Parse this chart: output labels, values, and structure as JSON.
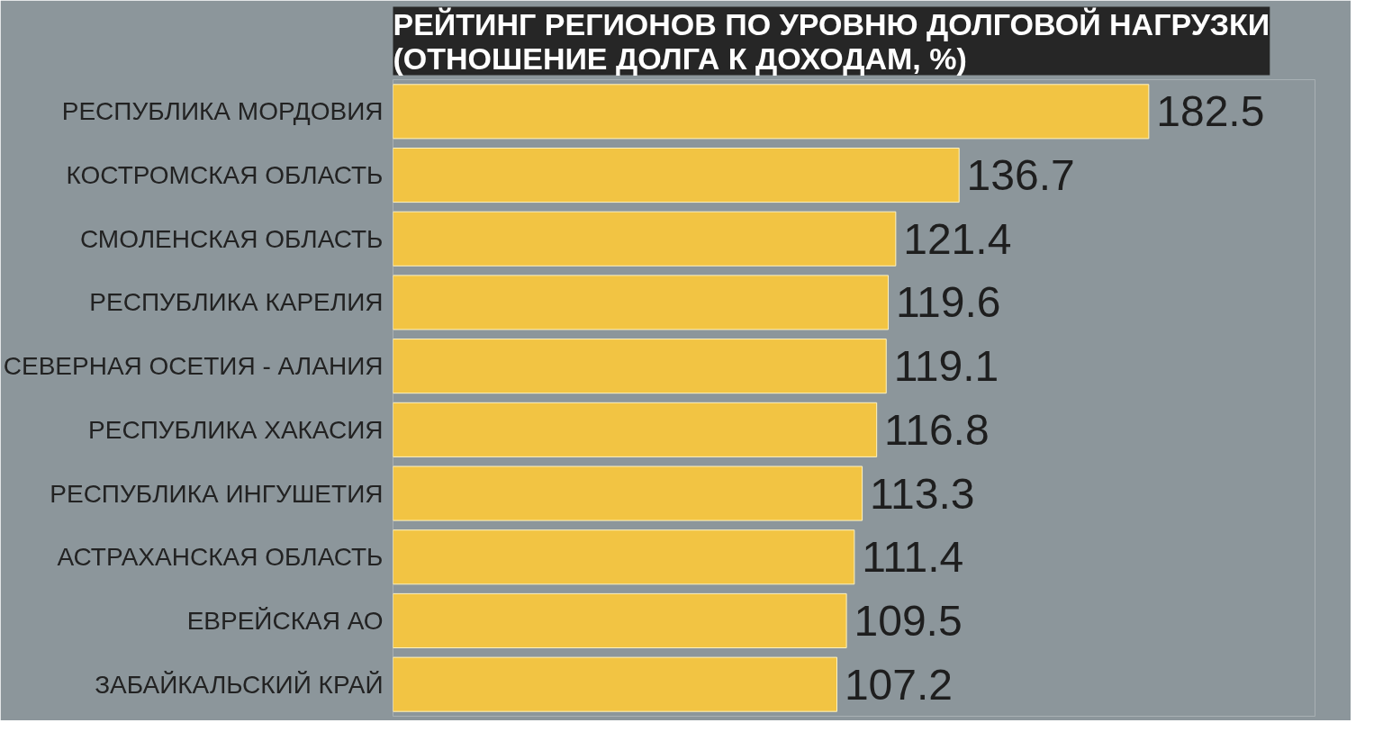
{
  "chart_data": {
    "type": "bar",
    "orientation": "horizontal",
    "title": "РЕЙТИНГ РЕГИОНОВ ПО УРОВНЮ ДОЛГОВОЙ НАГРУЗКИ\n(ОТНОШЕНИЕ ДОЛГА К ДОХОДАМ, %)",
    "categories": [
      "РЕСПУБЛИКА МОРДОВИЯ",
      "КОСТРОМСКАЯ ОБЛАСТЬ",
      "СМОЛЕНСКАЯ ОБЛАСТЬ",
      "РЕСПУБЛИКА КАРЕЛИЯ",
      "СЕВЕРНАЯ ОСЕТИЯ - АЛАНИЯ",
      "РЕСПУБЛИКА ХАКАСИЯ",
      "РЕСПУБЛИКА ИНГУШЕТИЯ",
      "АСТРАХАНСКАЯ ОБЛАСТЬ",
      "ЕВРЕЙСКАЯ АО",
      "ЗАБАЙКАЛЬСКИЙ КРАЙ"
    ],
    "values": [
      182.5,
      136.7,
      121.4,
      119.6,
      119.1,
      116.8,
      113.3,
      111.4,
      109.5,
      107.2
    ],
    "color": "#f2c443",
    "data_labels": true,
    "tick_labels": "y",
    "grid": false
  }
}
